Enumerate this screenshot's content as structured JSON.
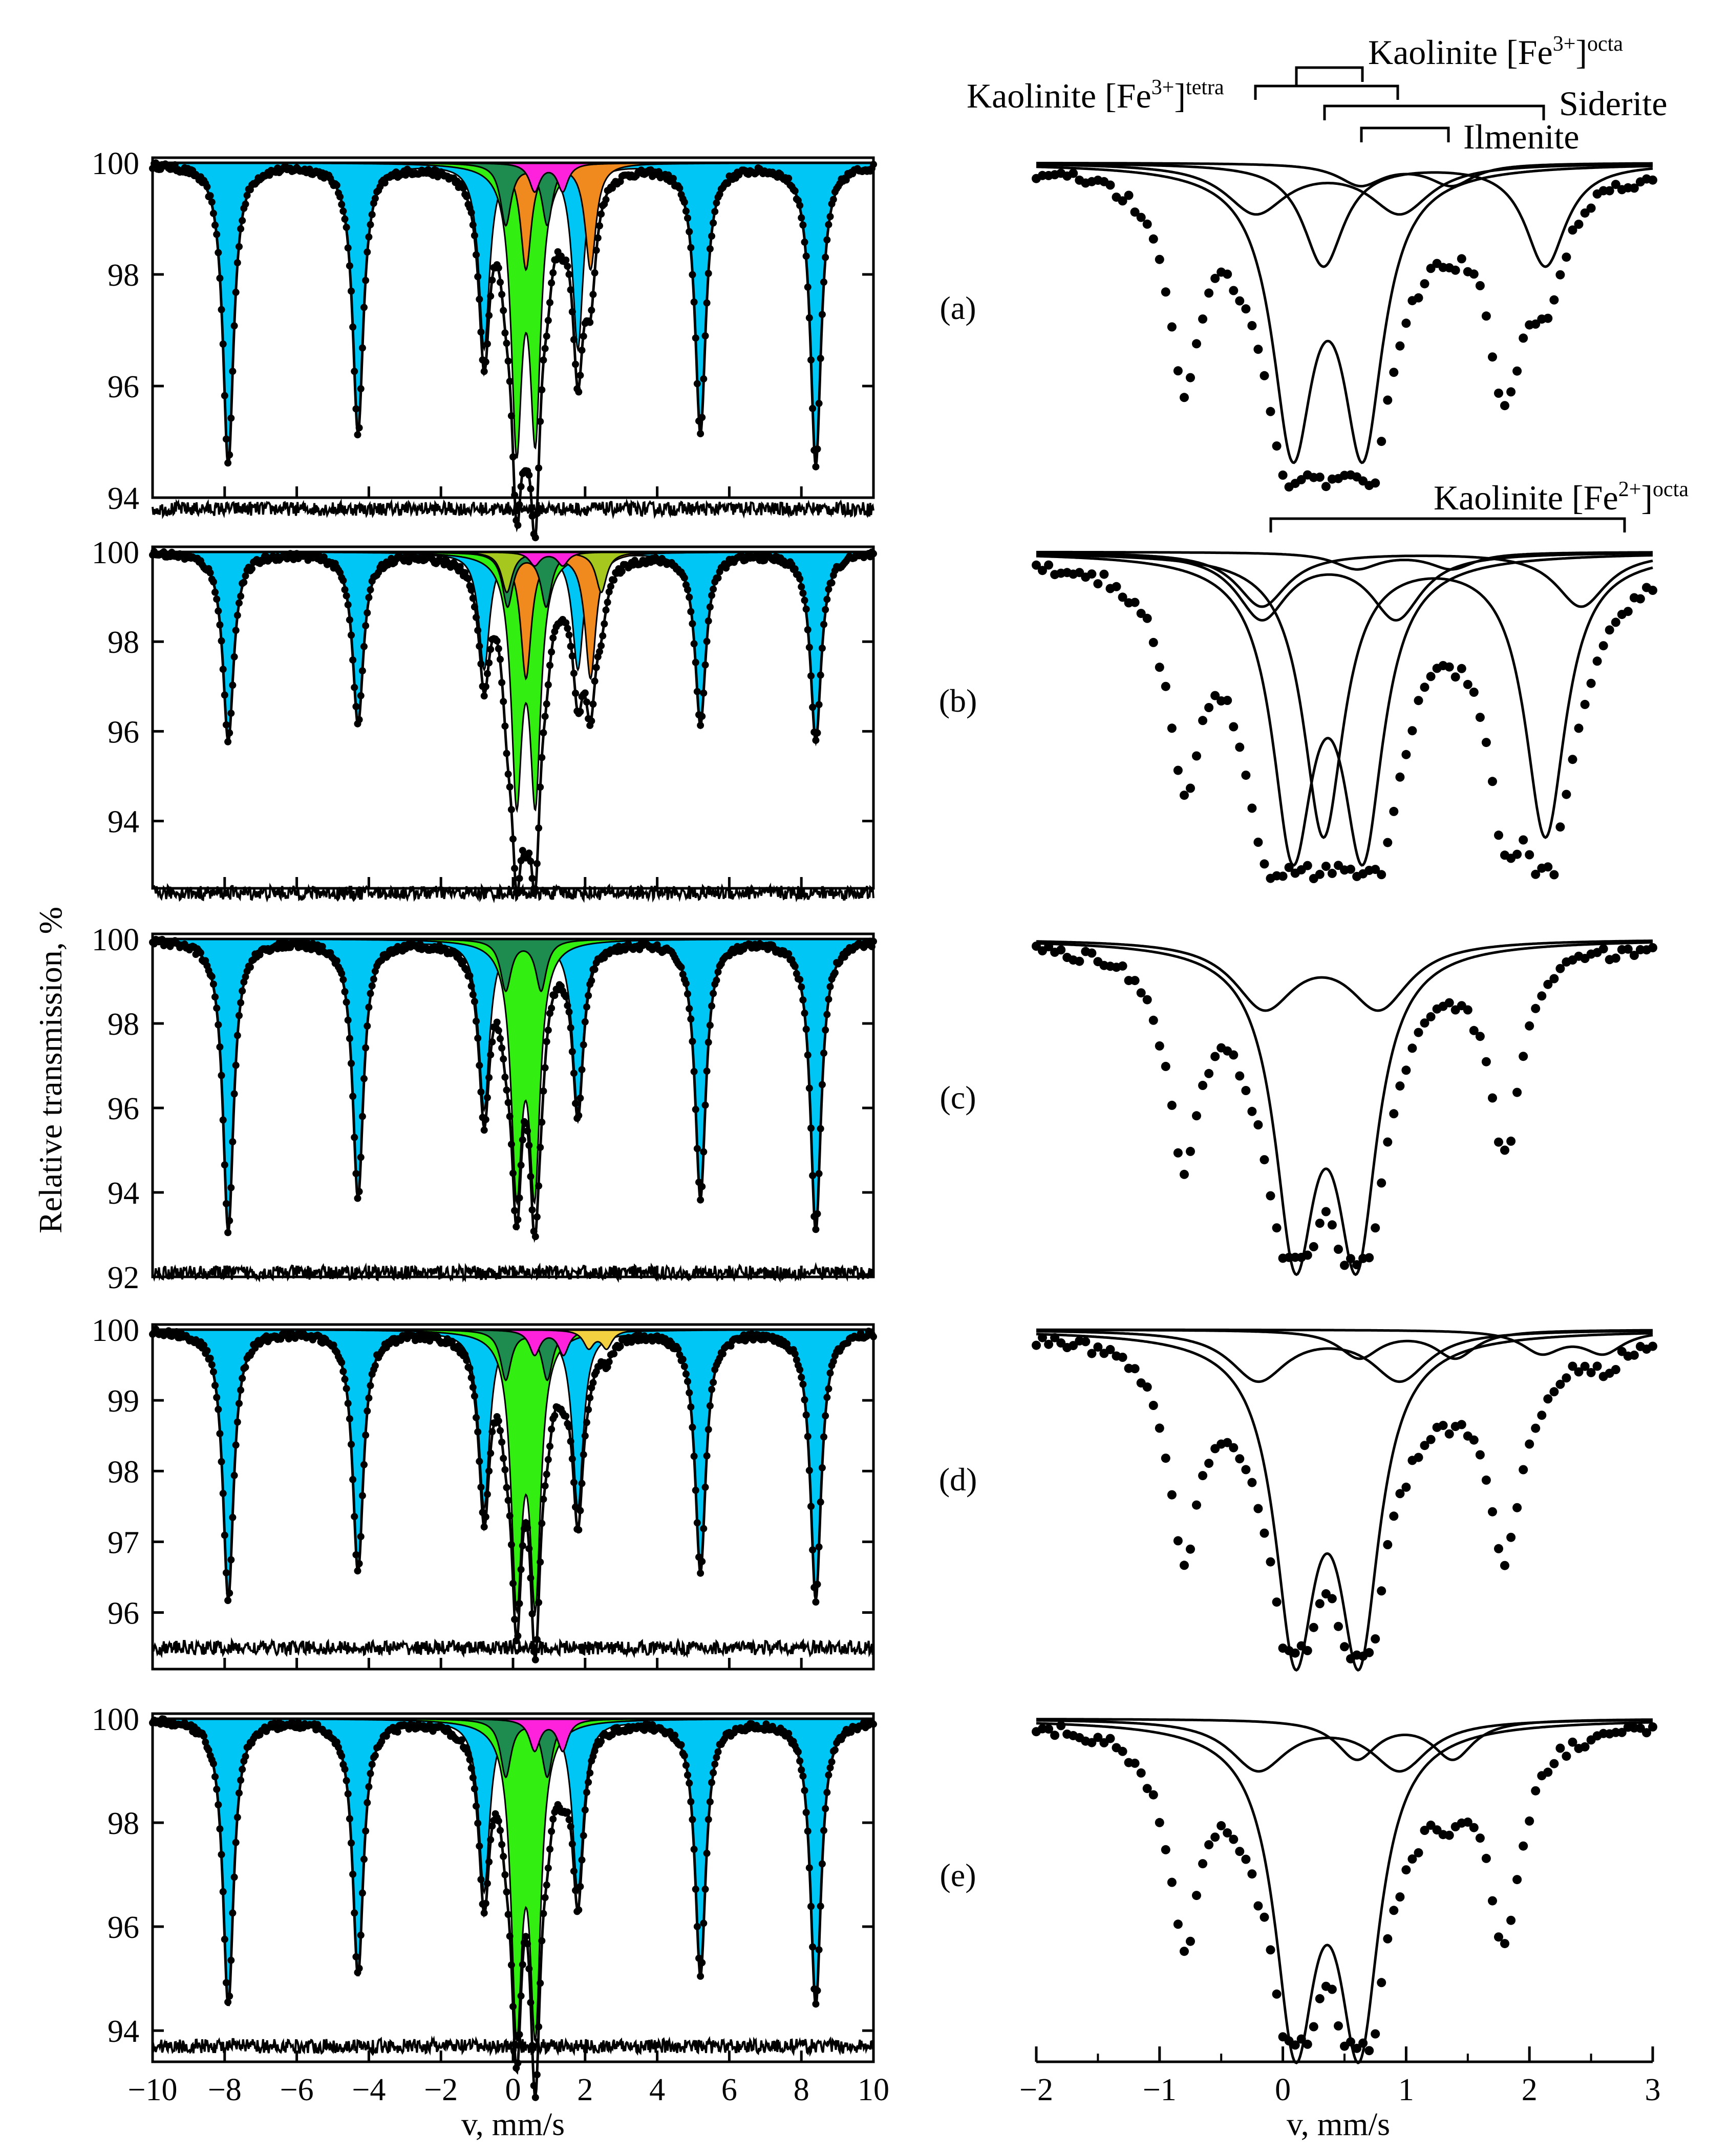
{
  "figure": {
    "y_axis_label": "Relative transmission, %",
    "x_axis_label_left": "v, mm/s",
    "x_axis_label_right": "v, mm/s",
    "panel_labels": [
      "(a)",
      "(b)",
      "(c)",
      "(d)",
      "(e)"
    ]
  },
  "annotations": {
    "kaolinite_fe3_octa": {
      "base": "Kaolinite [Fe",
      "sup": "3+",
      "mid": "]",
      "sub": "octa"
    },
    "kaolinite_fe3_tetra": {
      "base": "Kaolinite [Fe",
      "sup": "3+",
      "mid": "]",
      "sub": "tetra"
    },
    "kaolinite_fe2_octa": {
      "base": "Kaolinite [Fe",
      "sup": "2+",
      "mid": "]",
      "sub": "octa"
    },
    "siderite": "Siderite",
    "ilmenite": "Ilmenite"
  },
  "colors": {
    "magnetite_sextet": "#00c6f5",
    "quad_main": "#33ee11",
    "quad_dark": "#1e8c4e",
    "ilmenite_like": "#f08a1e",
    "magenta": "#ff22dd",
    "yellow": "#f2d040",
    "olive": "#a6c81e",
    "line": "#000000"
  },
  "chart_data": [
    {
      "type": "area",
      "panel": "(a)",
      "side": "left",
      "xlim": [
        -10,
        10
      ],
      "ylim": [
        94,
        100
      ],
      "yticks": [
        94,
        96,
        98,
        100
      ],
      "series": [
        {
          "kind": "sextet",
          "lines": [
            -7.9,
            -4.3,
            -0.8,
            1.8,
            5.2,
            8.4
          ],
          "depths": [
            5.4,
            4.8,
            3.3,
            3.3,
            4.8,
            5.4
          ],
          "color": "magnetite_sextet"
        },
        {
          "kind": "doublet",
          "lines": [
            0.1,
            0.62
          ],
          "depths": [
            4.8,
            4.6
          ],
          "color": "quad_main"
        },
        {
          "kind": "doublet",
          "lines": [
            0.36,
            2.15
          ],
          "depths": [
            1.9,
            1.9
          ],
          "color": "ilmenite_like"
        },
        {
          "kind": "doublet",
          "lines": [
            -0.2,
            0.95
          ],
          "depths": [
            1.1,
            1.1
          ],
          "color": "quad_dark"
        },
        {
          "kind": "doublet",
          "lines": [
            0.6,
            1.38
          ],
          "depths": [
            0.5,
            0.5
          ],
          "color": "magenta"
        }
      ],
      "residual_level": 93.8
    },
    {
      "type": "area",
      "panel": "(b)",
      "side": "left",
      "xlim": [
        -10,
        10
      ],
      "ylim": [
        92.5,
        100
      ],
      "yticks": [
        94,
        96,
        98,
        100
      ],
      "series": [
        {
          "kind": "sextet",
          "lines": [
            -7.9,
            -4.3,
            -0.8,
            1.8,
            5.2,
            8.4
          ],
          "depths": [
            4.2,
            3.8,
            2.6,
            2.6,
            3.8,
            4.2
          ],
          "color": "magnetite_sextet"
        },
        {
          "kind": "doublet",
          "lines": [
            0.1,
            0.62
          ],
          "depths": [
            5.2,
            5.2
          ],
          "color": "quad_main"
        },
        {
          "kind": "doublet",
          "lines": [
            0.36,
            2.15
          ],
          "depths": [
            2.8,
            2.8
          ],
          "color": "ilmenite_like"
        },
        {
          "kind": "doublet",
          "lines": [
            -0.15,
            0.92
          ],
          "depths": [
            1.2,
            1.2
          ],
          "color": "quad_dark"
        },
        {
          "kind": "doublet",
          "lines": [
            -0.17,
            2.45
          ],
          "depths": [
            0.9,
            0.9
          ],
          "color": "olive"
        },
        {
          "kind": "doublet",
          "lines": [
            0.6,
            1.38
          ],
          "depths": [
            0.3,
            0.3
          ],
          "color": "magenta"
        }
      ],
      "residual_level": 92.4
    },
    {
      "type": "area",
      "panel": "(c)",
      "side": "left",
      "xlim": [
        -10,
        10
      ],
      "ylim": [
        92,
        100
      ],
      "yticks": [
        92,
        94,
        96,
        98,
        100
      ],
      "series": [
        {
          "kind": "sextet",
          "lines": [
            -7.9,
            -4.3,
            -0.8,
            1.8,
            5.2,
            8.4
          ],
          "depths": [
            6.9,
            6.1,
            4.0,
            4.0,
            6.1,
            6.9
          ],
          "color": "magnetite_sextet"
        },
        {
          "kind": "doublet",
          "lines": [
            0.1,
            0.6
          ],
          "depths": [
            5.6,
            5.6
          ],
          "color": "quad_main"
        },
        {
          "kind": "doublet",
          "lines": [
            -0.2,
            0.78
          ],
          "depths": [
            1.2,
            1.2
          ],
          "color": "quad_dark"
        }
      ],
      "residual_level": 92.1
    },
    {
      "type": "area",
      "panel": "(d)",
      "side": "left",
      "xlim": [
        -10,
        10
      ],
      "ylim": [
        95.2,
        100
      ],
      "yticks": [
        96,
        97,
        98,
        99,
        100
      ],
      "series": [
        {
          "kind": "sextet",
          "lines": [
            -7.9,
            -4.3,
            -0.8,
            1.8,
            5.2,
            8.4
          ],
          "depths": [
            3.8,
            3.4,
            2.5,
            2.5,
            3.4,
            3.8
          ],
          "color": "magnetite_sextet"
        },
        {
          "kind": "doublet",
          "lines": [
            0.1,
            0.62
          ],
          "depths": [
            3.6,
            3.6
          ],
          "color": "quad_main"
        },
        {
          "kind": "doublet",
          "lines": [
            -0.2,
            0.95
          ],
          "depths": [
            0.7,
            0.7
          ],
          "color": "quad_dark"
        },
        {
          "kind": "doublet",
          "lines": [
            0.6,
            1.4
          ],
          "depths": [
            0.35,
            0.35
          ],
          "color": "magenta"
        },
        {
          "kind": "doublet",
          "lines": [
            2.1,
            2.6
          ],
          "depths": [
            0.25,
            0.25
          ],
          "color": "yellow"
        }
      ],
      "residual_level": 95.5
    },
    {
      "type": "area",
      "panel": "(e)",
      "side": "left",
      "xlim": [
        -10,
        10
      ],
      "ylim": [
        93.4,
        100
      ],
      "yticks": [
        94,
        96,
        98,
        100
      ],
      "series": [
        {
          "kind": "sextet",
          "lines": [
            -7.9,
            -4.3,
            -0.8,
            1.8,
            5.2,
            8.4
          ],
          "depths": [
            5.5,
            4.9,
            3.3,
            3.3,
            4.9,
            5.5
          ],
          "color": "magnetite_sextet"
        },
        {
          "kind": "doublet",
          "lines": [
            0.1,
            0.62
          ],
          "depths": [
            5.6,
            5.6
          ],
          "color": "quad_main"
        },
        {
          "kind": "doublet",
          "lines": [
            -0.2,
            0.95
          ],
          "depths": [
            1.1,
            1.1
          ],
          "color": "quad_dark"
        },
        {
          "kind": "doublet",
          "lines": [
            0.6,
            1.38
          ],
          "depths": [
            0.6,
            0.6
          ],
          "color": "magenta"
        }
      ],
      "residual_level": 93.7
    },
    {
      "type": "line",
      "panel": "(a)",
      "side": "right",
      "xlim": [
        -2,
        3
      ],
      "components": [
        {
          "lines": [
            0.08,
            0.65
          ],
          "depth": 5.0,
          "width": 0.2
        },
        {
          "lines": [
            0.33,
            2.13
          ],
          "depth": 1.9,
          "width": 0.2
        },
        {
          "lines": [
            -0.22,
            0.95
          ],
          "depth": 0.9,
          "width": 0.3
        },
        {
          "lines": [
            0.63,
            1.37
          ],
          "depth": 0.4,
          "width": 0.22
        }
      ],
      "points_envelope": "sextet+components"
    },
    {
      "type": "line",
      "panel": "(b)",
      "side": "right",
      "xlim": [
        -2,
        3
      ],
      "components": [
        {
          "lines": [
            0.08,
            0.65
          ],
          "depth": 5.2,
          "width": 0.2
        },
        {
          "lines": [
            0.33,
            2.13
          ],
          "depth": 5.2,
          "width": 0.2
        },
        {
          "lines": [
            -0.17,
            0.92
          ],
          "depth": 1.2,
          "width": 0.25
        },
        {
          "lines": [
            -0.17,
            2.42
          ],
          "depth": 1.0,
          "width": 0.25
        },
        {
          "lines": [
            0.6,
            1.37
          ],
          "depth": 0.3,
          "width": 0.22
        }
      ],
      "points_envelope": "sextet+components"
    },
    {
      "type": "line",
      "panel": "(c)",
      "side": "right",
      "xlim": [
        -2,
        3
      ],
      "components": [
        {
          "lines": [
            0.1,
            0.6
          ],
          "depth": 5.4,
          "width": 0.2
        },
        {
          "lines": [
            -0.15,
            0.78
          ],
          "depth": 1.2,
          "width": 0.3
        }
      ],
      "points_envelope": "sextet+components"
    },
    {
      "type": "line",
      "panel": "(d)",
      "side": "right",
      "xlim": [
        -2,
        3
      ],
      "components": [
        {
          "lines": [
            0.1,
            0.62
          ],
          "depth": 5.5,
          "width": 0.2
        },
        {
          "lines": [
            -0.2,
            0.95
          ],
          "depth": 0.9,
          "width": 0.28
        },
        {
          "lines": [
            0.62,
            1.4
          ],
          "depth": 0.5,
          "width": 0.2
        },
        {
          "lines": [
            2.1,
            2.6
          ],
          "depth": 0.4,
          "width": 0.2
        }
      ],
      "points_envelope": "sextet+components"
    },
    {
      "type": "line",
      "panel": "(e)",
      "side": "right",
      "xlim": [
        -2,
        3
      ],
      "xticks": [
        -2,
        -1,
        0,
        1,
        2,
        3
      ],
      "components": [
        {
          "lines": [
            0.1,
            0.62
          ],
          "depth": 5.5,
          "width": 0.2
        },
        {
          "lines": [
            -0.2,
            0.95
          ],
          "depth": 0.9,
          "width": 0.28
        },
        {
          "lines": [
            0.6,
            1.38
          ],
          "depth": 0.7,
          "width": 0.2
        }
      ],
      "points_envelope": "sextet+components"
    }
  ],
  "left_xticks": [
    -10,
    -8,
    -6,
    -4,
    -2,
    0,
    2,
    4,
    6,
    8,
    10
  ],
  "right_xticks": [
    -2,
    -1,
    0,
    1,
    2,
    3
  ]
}
